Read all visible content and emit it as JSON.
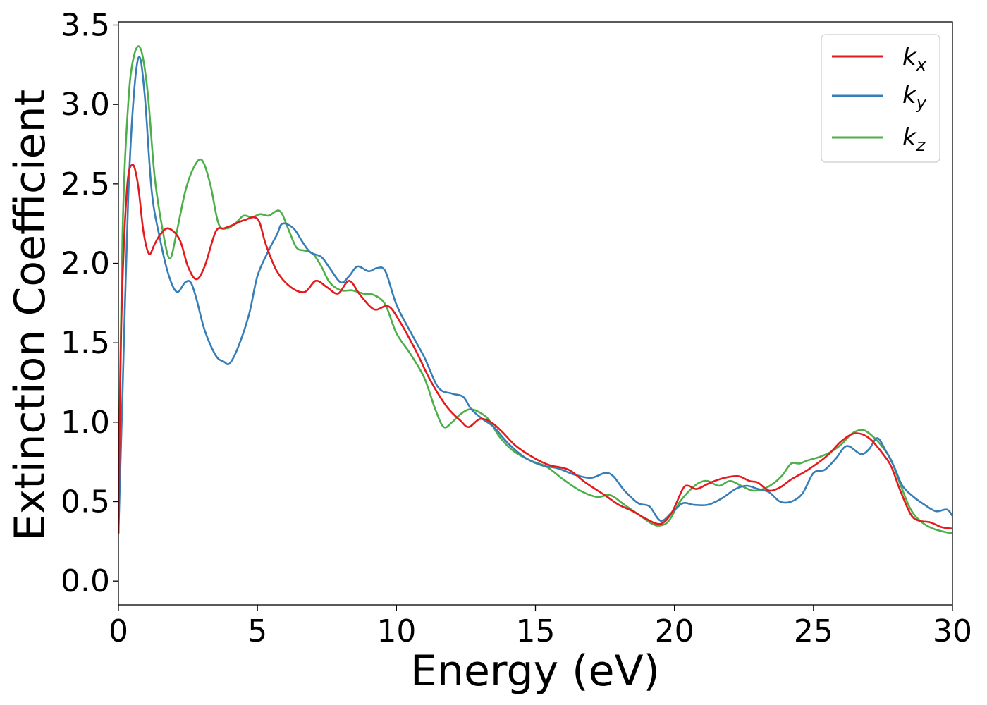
{
  "chart_data": {
    "type": "line",
    "xlabel": "Energy (eV)",
    "ylabel": "Extinction Coefficient",
    "xlim": [
      0,
      30
    ],
    "ylim": [
      -0.15,
      3.52
    ],
    "xticks": [
      "0",
      "5",
      "10",
      "15",
      "20",
      "25",
      "30"
    ],
    "yticks": [
      "0.0",
      "0.5",
      "1.0",
      "1.5",
      "2.0",
      "2.5",
      "3.0",
      "3.5"
    ],
    "grid": false,
    "legend_position": "top-right",
    "series": [
      {
        "name": "k",
        "subscript": "x",
        "color": "#e41a1c",
        "x": [
          0,
          0.1,
          0.3,
          0.5,
          0.7,
          0.9,
          1.1,
          1.3,
          1.5,
          1.8,
          2.2,
          2.5,
          2.8,
          3.1,
          3.5,
          3.8,
          4.1,
          4.5,
          5.0,
          5.3,
          5.7,
          6.2,
          6.7,
          7.1,
          7.5,
          7.9,
          8.3,
          8.7,
          9.2,
          9.7,
          10.1,
          10.7,
          11.2,
          11.8,
          12.3,
          12.6,
          13.0,
          13.4,
          13.8,
          14.3,
          15.0,
          15.5,
          16.2,
          16.8,
          17.5,
          18.0,
          18.5,
          19.0,
          19.5,
          19.9,
          20.3,
          20.5,
          20.8,
          21.3,
          21.8,
          22.3,
          22.7,
          23.0,
          23.4,
          23.8,
          24.2,
          24.8,
          25.5,
          26.0,
          26.5,
          27.0,
          27.5,
          27.8,
          28.1,
          28.5,
          28.8,
          29.2,
          29.6,
          30.0
        ],
        "y": [
          0.3,
          1.6,
          2.45,
          2.62,
          2.5,
          2.2,
          2.06,
          2.12,
          2.18,
          2.22,
          2.15,
          1.98,
          1.9,
          1.98,
          2.2,
          2.22,
          2.24,
          2.27,
          2.28,
          2.12,
          1.95,
          1.85,
          1.82,
          1.89,
          1.85,
          1.81,
          1.89,
          1.8,
          1.71,
          1.73,
          1.64,
          1.45,
          1.27,
          1.1,
          1.01,
          0.97,
          1.02,
          1.0,
          0.94,
          0.85,
          0.77,
          0.73,
          0.7,
          0.62,
          0.54,
          0.48,
          0.44,
          0.39,
          0.36,
          0.43,
          0.58,
          0.6,
          0.58,
          0.62,
          0.65,
          0.66,
          0.63,
          0.62,
          0.57,
          0.59,
          0.64,
          0.7,
          0.79,
          0.88,
          0.93,
          0.9,
          0.8,
          0.72,
          0.58,
          0.42,
          0.38,
          0.37,
          0.34,
          0.33
        ]
      },
      {
        "name": "k",
        "subscript": "y",
        "color": "#377eb8",
        "x": [
          0,
          0.15,
          0.35,
          0.55,
          0.75,
          0.95,
          1.2,
          1.5,
          1.8,
          2.1,
          2.4,
          2.6,
          2.8,
          3.1,
          3.5,
          3.8,
          4.0,
          4.3,
          4.7,
          5.0,
          5.4,
          5.7,
          5.9,
          6.3,
          6.6,
          6.9,
          7.3,
          7.6,
          8.0,
          8.3,
          8.6,
          9.0,
          9.3,
          9.6,
          10.0,
          10.5,
          11.0,
          11.5,
          12.0,
          12.4,
          12.7,
          13.1,
          13.5,
          14.0,
          14.6,
          15.2,
          15.8,
          16.4,
          17.0,
          17.5,
          17.8,
          18.2,
          18.7,
          19.1,
          19.5,
          19.9,
          20.3,
          20.7,
          21.2,
          21.7,
          22.2,
          22.6,
          23.0,
          23.4,
          23.8,
          24.2,
          24.6,
          25.0,
          25.4,
          25.8,
          26.2,
          26.7,
          27.0,
          27.3,
          27.6,
          27.9,
          28.2,
          28.6,
          29.0,
          29.4,
          29.8,
          30.0
        ],
        "y": [
          0.3,
          1.2,
          2.4,
          3.05,
          3.3,
          3.05,
          2.45,
          2.15,
          1.93,
          1.82,
          1.88,
          1.88,
          1.78,
          1.58,
          1.42,
          1.38,
          1.37,
          1.47,
          1.68,
          1.92,
          2.08,
          2.18,
          2.25,
          2.22,
          2.14,
          2.07,
          2.04,
          1.97,
          1.88,
          1.92,
          1.98,
          1.95,
          1.97,
          1.95,
          1.74,
          1.57,
          1.41,
          1.22,
          1.18,
          1.16,
          1.08,
          1.02,
          0.97,
          0.87,
          0.78,
          0.73,
          0.71,
          0.67,
          0.65,
          0.68,
          0.66,
          0.57,
          0.49,
          0.47,
          0.38,
          0.43,
          0.49,
          0.48,
          0.48,
          0.52,
          0.58,
          0.6,
          0.58,
          0.56,
          0.5,
          0.5,
          0.55,
          0.68,
          0.7,
          0.77,
          0.85,
          0.8,
          0.83,
          0.9,
          0.82,
          0.72,
          0.6,
          0.53,
          0.48,
          0.44,
          0.45,
          0.41
        ]
      },
      {
        "name": "k",
        "subscript": "z",
        "color": "#4daf4a",
        "x": [
          0,
          0.15,
          0.35,
          0.55,
          0.8,
          1.05,
          1.3,
          1.6,
          1.85,
          2.1,
          2.4,
          2.7,
          3.0,
          3.3,
          3.6,
          3.9,
          4.2,
          4.5,
          4.8,
          5.1,
          5.4,
          5.8,
          6.1,
          6.4,
          6.7,
          7.0,
          7.3,
          7.6,
          8.0,
          8.4,
          8.8,
          9.2,
          9.6,
          10.0,
          10.5,
          11.0,
          11.4,
          11.7,
          12.0,
          12.3,
          12.6,
          12.9,
          13.3,
          13.7,
          14.2,
          14.8,
          15.4,
          16.0,
          16.6,
          17.2,
          17.7,
          18.2,
          18.7,
          19.2,
          19.5,
          19.8,
          20.2,
          20.6,
          20.9,
          21.2,
          21.6,
          22.0,
          22.4,
          22.8,
          23.2,
          23.6,
          23.9,
          24.2,
          24.5,
          24.8,
          25.2,
          25.6,
          26.0,
          26.4,
          26.8,
          27.2,
          27.5,
          27.8,
          28.1,
          28.5,
          28.9,
          29.3,
          29.7,
          30.0
        ],
        "y": [
          0.5,
          2.2,
          3.0,
          3.3,
          3.35,
          3.08,
          2.55,
          2.2,
          2.03,
          2.2,
          2.45,
          2.6,
          2.65,
          2.5,
          2.25,
          2.22,
          2.25,
          2.3,
          2.29,
          2.31,
          2.3,
          2.33,
          2.22,
          2.1,
          2.08,
          2.06,
          1.98,
          1.88,
          1.83,
          1.83,
          1.81,
          1.8,
          1.74,
          1.56,
          1.43,
          1.28,
          1.08,
          0.97,
          1.0,
          1.05,
          1.08,
          1.07,
          1.02,
          0.91,
          0.82,
          0.76,
          0.72,
          0.64,
          0.57,
          0.53,
          0.54,
          0.48,
          0.42,
          0.36,
          0.35,
          0.38,
          0.5,
          0.58,
          0.62,
          0.63,
          0.6,
          0.63,
          0.6,
          0.57,
          0.58,
          0.62,
          0.67,
          0.74,
          0.74,
          0.76,
          0.78,
          0.81,
          0.86,
          0.93,
          0.95,
          0.9,
          0.84,
          0.76,
          0.62,
          0.45,
          0.37,
          0.33,
          0.31,
          0.3
        ]
      }
    ]
  }
}
